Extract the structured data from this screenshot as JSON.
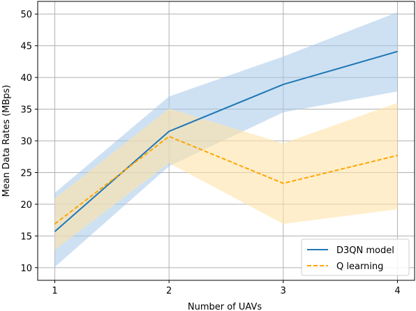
{
  "chart_data": {
    "type": "line",
    "title": "",
    "xlabel": "Number of UAVs",
    "ylabel": "Mean Data Rates (MBps)",
    "x": [
      1,
      2,
      3,
      4
    ],
    "xlim": [
      0.85,
      4.15
    ],
    "ylim": [
      8,
      52
    ],
    "xticks": [
      "1",
      "2",
      "3",
      "4"
    ],
    "yticks": [
      "10",
      "15",
      "20",
      "25",
      "30",
      "35",
      "40",
      "45",
      "50"
    ],
    "grid": true,
    "legend_position": "lower-right",
    "series": [
      {
        "name": "D3QN model",
        "color": "#1f77b4",
        "fill_color": "#a6c8ea",
        "line_style": "solid",
        "values": [
          15.7,
          31.5,
          38.9,
          44.1
        ],
        "band_lower": [
          10.1,
          26.0,
          34.5,
          37.8
        ],
        "band_upper": [
          21.8,
          37.0,
          43.3,
          50.3
        ]
      },
      {
        "name": "Q learning",
        "color": "#ffa500",
        "fill_color": "#ffe2a8",
        "line_style": "dashed",
        "values": [
          16.9,
          30.7,
          23.3,
          27.7
        ],
        "band_lower": [
          12.8,
          26.5,
          16.9,
          19.2
        ],
        "band_upper": [
          20.9,
          35.1,
          29.6,
          36.0
        ]
      }
    ]
  }
}
